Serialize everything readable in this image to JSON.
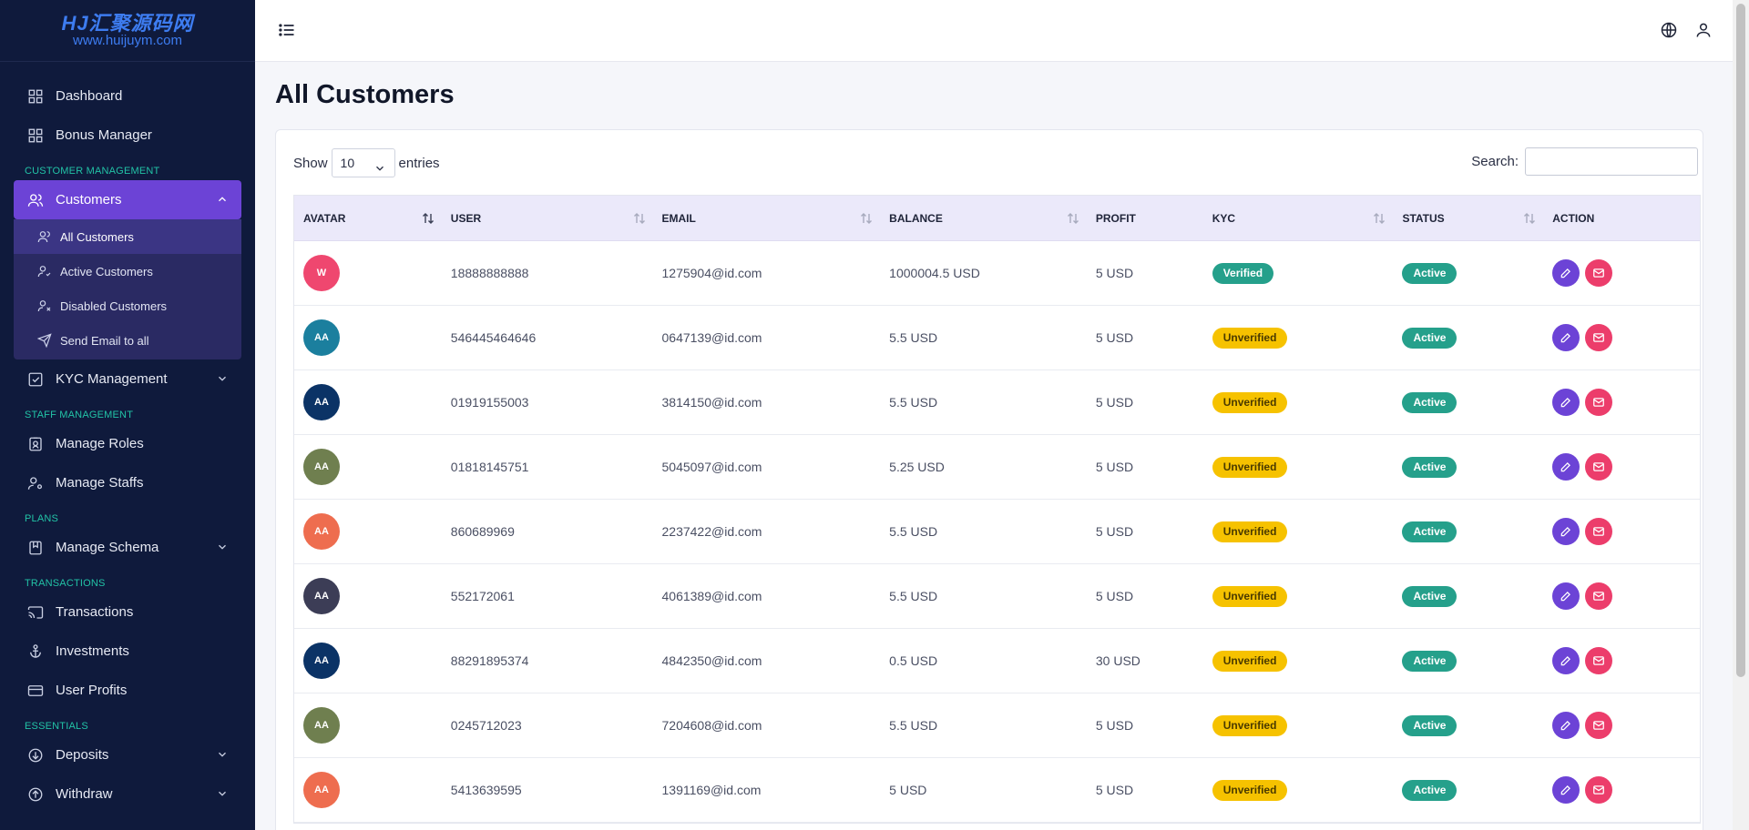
{
  "logo": {
    "main": "HJ汇聚源码网",
    "sub": "www.huijuym.com"
  },
  "sidebar": {
    "dashboard": "Dashboard",
    "bonus_manager": "Bonus Manager",
    "section_customer": "CUSTOMER MANAGEMENT",
    "customers": "Customers",
    "sub": [
      "All Customers",
      "Active Customers",
      "Disabled Customers",
      "Send Email to all"
    ],
    "kyc": "KYC Management",
    "section_staff": "STAFF MANAGEMENT",
    "manage_roles": "Manage Roles",
    "manage_staffs": "Manage Staffs",
    "section_plans": "PLANS",
    "manage_schema": "Manage Schema",
    "section_transactions": "TRANSACTIONS",
    "transactions": "Transactions",
    "investments": "Investments",
    "user_profits": "User Profits",
    "section_essentials": "ESSENTIALS",
    "deposits": "Deposits",
    "withdraw": "Withdraw"
  },
  "page": {
    "title": "All Customers"
  },
  "controls": {
    "show": "Show",
    "entries_value": "10",
    "entries": "entries",
    "search_label": "Search:"
  },
  "table": {
    "headers": [
      "AVATAR",
      "USER",
      "EMAIL",
      "BALANCE",
      "PROFIT",
      "KYC",
      "STATUS",
      "ACTION"
    ],
    "rows": [
      {
        "initials": "W",
        "avatar_color": "#ef476f",
        "user": "18888888888",
        "email": "1275904@id.com",
        "balance": "1000004.5 USD",
        "profit": "5 USD",
        "kyc": "Verified",
        "status": "Active"
      },
      {
        "initials": "AA",
        "avatar_color": "#1b7f9e",
        "user": "546445464646",
        "email": "0647139@id.com",
        "balance": "5.5 USD",
        "profit": "5 USD",
        "kyc": "Unverified",
        "status": "Active"
      },
      {
        "initials": "AA",
        "avatar_color": "#0b3366",
        "user": "01919155003",
        "email": "3814150@id.com",
        "balance": "5.5 USD",
        "profit": "5 USD",
        "kyc": "Unverified",
        "status": "Active"
      },
      {
        "initials": "AA",
        "avatar_color": "#6f7f4f",
        "user": "01818145751",
        "email": "5045097@id.com",
        "balance": "5.25 USD",
        "profit": "5 USD",
        "kyc": "Unverified",
        "status": "Active"
      },
      {
        "initials": "AA",
        "avatar_color": "#ee6d4f",
        "user": "860689969",
        "email": "2237422@id.com",
        "balance": "5.5 USD",
        "profit": "5 USD",
        "kyc": "Unverified",
        "status": "Active"
      },
      {
        "initials": "AA",
        "avatar_color": "#3c3d56",
        "user": "552172061",
        "email": "4061389@id.com",
        "balance": "5.5 USD",
        "profit": "5 USD",
        "kyc": "Unverified",
        "status": "Active"
      },
      {
        "initials": "AA",
        "avatar_color": "#0b3366",
        "user": "88291895374",
        "email": "4842350@id.com",
        "balance": "0.5 USD",
        "profit": "30 USD",
        "kyc": "Unverified",
        "status": "Active"
      },
      {
        "initials": "AA",
        "avatar_color": "#6f7f4f",
        "user": "0245712023",
        "email": "7204608@id.com",
        "balance": "5.5 USD",
        "profit": "5 USD",
        "kyc": "Unverified",
        "status": "Active"
      },
      {
        "initials": "AA",
        "avatar_color": "#ee6d4f",
        "user": "5413639595",
        "email": "1391169@id.com",
        "balance": "5 USD",
        "profit": "5 USD",
        "kyc": "Unverified",
        "status": "Active"
      }
    ]
  },
  "colors": {
    "sidebar_bg": "#0f1a3c",
    "accent": "#6c43d6",
    "success": "#25a08b",
    "warning": "#f6c200",
    "danger": "#ec3d6b"
  }
}
